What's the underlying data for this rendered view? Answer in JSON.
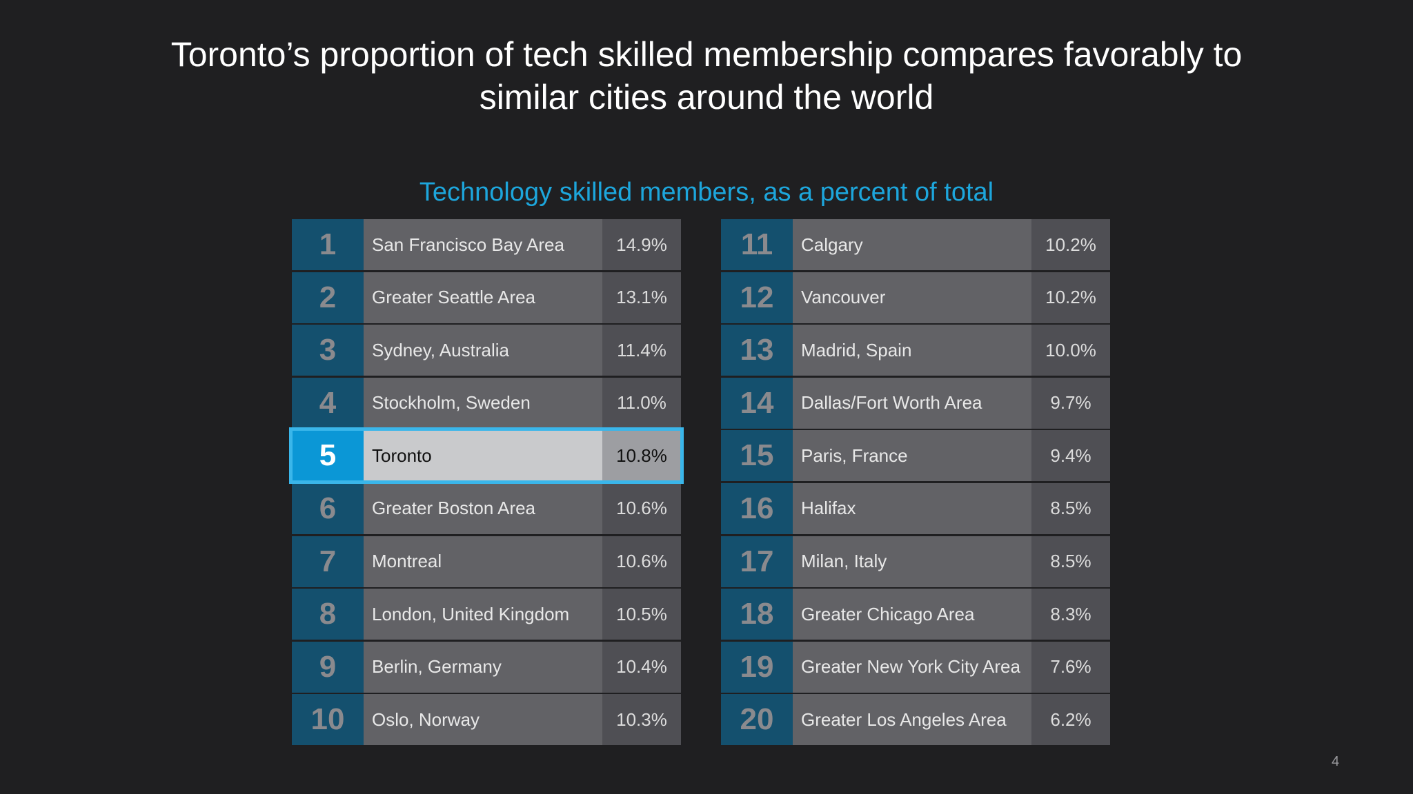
{
  "slide": {
    "title_line1": "Toronto’s proportion of tech skilled membership compares favorably to",
    "title_line2": "similar cities around the world",
    "page_number": "4"
  },
  "colors": {
    "background": "#1f1f21",
    "accent": "#1da6dc",
    "rank_cell": "#14506e",
    "highlight_rank": "#0b97d6"
  },
  "chart_data": {
    "type": "table",
    "title": "Technology skilled members, as a percent of total",
    "highlighted_rank": 5,
    "rows": [
      {
        "rank": "1",
        "city": "San Francisco Bay Area",
        "value": "14.9%",
        "percent": 14.9
      },
      {
        "rank": "2",
        "city": "Greater Seattle Area",
        "value": "13.1%",
        "percent": 13.1
      },
      {
        "rank": "3",
        "city": "Sydney, Australia",
        "value": "11.4%",
        "percent": 11.4
      },
      {
        "rank": "4",
        "city": "Stockholm, Sweden",
        "value": "11.0%",
        "percent": 11.0
      },
      {
        "rank": "5",
        "city": "Toronto",
        "value": "10.8%",
        "percent": 10.8
      },
      {
        "rank": "6",
        "city": "Greater Boston Area",
        "value": "10.6%",
        "percent": 10.6
      },
      {
        "rank": "7",
        "city": "Montreal",
        "value": "10.6%",
        "percent": 10.6
      },
      {
        "rank": "8",
        "city": "London, United Kingdom",
        "value": "10.5%",
        "percent": 10.5
      },
      {
        "rank": "9",
        "city": "Berlin, Germany",
        "value": "10.4%",
        "percent": 10.4
      },
      {
        "rank": "10",
        "city": "Oslo, Norway",
        "value": "10.3%",
        "percent": 10.3
      },
      {
        "rank": "11",
        "city": "Calgary",
        "value": "10.2%",
        "percent": 10.2
      },
      {
        "rank": "12",
        "city": "Vancouver",
        "value": "10.2%",
        "percent": 10.2
      },
      {
        "rank": "13",
        "city": "Madrid, Spain",
        "value": "10.0%",
        "percent": 10.0
      },
      {
        "rank": "14",
        "city": "Dallas/Fort Worth Area",
        "value": "9.7%",
        "percent": 9.7
      },
      {
        "rank": "15",
        "city": "Paris, France",
        "value": "9.4%",
        "percent": 9.4
      },
      {
        "rank": "16",
        "city": "Halifax",
        "value": "8.5%",
        "percent": 8.5
      },
      {
        "rank": "17",
        "city": "Milan, Italy",
        "value": "8.5%",
        "percent": 8.5
      },
      {
        "rank": "18",
        "city": "Greater Chicago Area",
        "value": "8.3%",
        "percent": 8.3
      },
      {
        "rank": "19",
        "city": "Greater New York City Area",
        "value": "7.6%",
        "percent": 7.6
      },
      {
        "rank": "20",
        "city": "Greater Los Angeles Area",
        "value": "6.2%",
        "percent": 6.2
      }
    ]
  }
}
